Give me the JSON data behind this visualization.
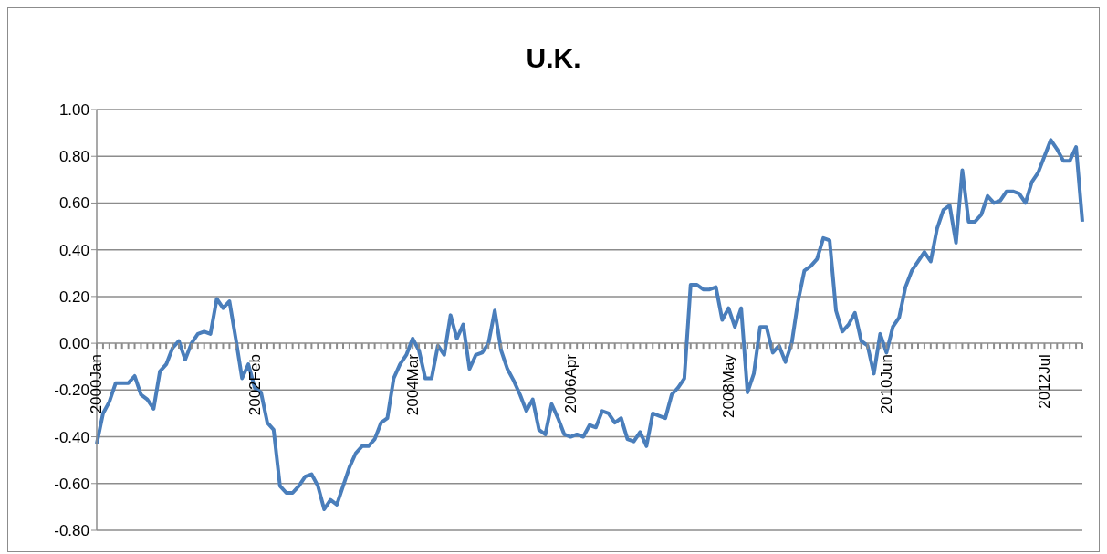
{
  "chart_data": {
    "type": "line",
    "title": "U.K.",
    "color": "#4a7ebb",
    "grid": "y",
    "ylim": [
      -0.8,
      1
    ],
    "yticks": [
      {
        "value": -0.8,
        "label": "-0.80"
      },
      {
        "value": -0.6,
        "label": "-0.60"
      },
      {
        "value": -0.4,
        "label": "-0.40"
      },
      {
        "value": -0.2,
        "label": "-0.20"
      },
      {
        "value": 0,
        "label": "0.00"
      },
      {
        "value": 0.2,
        "label": "0.20"
      },
      {
        "value": 0.4,
        "label": "0.40"
      },
      {
        "value": 0.6,
        "label": "0.60"
      },
      {
        "value": 0.8,
        "label": "0.80"
      },
      {
        "value": 1,
        "label": "1.00"
      }
    ],
    "categories": [
      "2000Jan",
      null,
      null,
      null,
      null,
      null,
      null,
      null,
      null,
      null,
      null,
      null,
      null,
      null,
      null,
      null,
      null,
      null,
      null,
      null,
      null,
      null,
      null,
      null,
      null,
      "2002Feb",
      null,
      null,
      null,
      null,
      null,
      null,
      null,
      null,
      null,
      null,
      null,
      null,
      null,
      null,
      null,
      null,
      null,
      null,
      null,
      null,
      null,
      null,
      null,
      null,
      "2004Mar",
      null,
      null,
      null,
      null,
      null,
      null,
      null,
      null,
      null,
      null,
      null,
      null,
      null,
      null,
      null,
      null,
      null,
      null,
      null,
      null,
      null,
      null,
      null,
      null,
      "2006Apr",
      null,
      null,
      null,
      null,
      null,
      null,
      null,
      null,
      null,
      null,
      null,
      null,
      null,
      null,
      null,
      null,
      null,
      null,
      null,
      null,
      null,
      null,
      null,
      null,
      "2008May",
      null,
      null,
      null,
      null,
      null,
      null,
      null,
      null,
      null,
      null,
      null,
      null,
      null,
      null,
      null,
      null,
      null,
      null,
      null,
      null,
      null,
      null,
      null,
      null,
      "2010Jun",
      null,
      null,
      null,
      null,
      null,
      null,
      null,
      null,
      null,
      null,
      null,
      null,
      null,
      null,
      null,
      null,
      null,
      null,
      null,
      null,
      null,
      null,
      null,
      null,
      "2012Jul",
      null,
      null,
      null,
      null,
      null,
      null
    ],
    "values": [
      -0.43,
      -0.3,
      -0.25,
      -0.17,
      -0.17,
      -0.17,
      -0.14,
      -0.22,
      -0.24,
      -0.28,
      -0.12,
      -0.09,
      -0.02,
      0.01,
      -0.07,
      0,
      0.04,
      0.05,
      0.04,
      0.19,
      0.15,
      0.18,
      0.02,
      -0.15,
      -0.09,
      -0.19,
      -0.21,
      -0.34,
      -0.37,
      -0.61,
      -0.64,
      -0.64,
      -0.61,
      -0.57,
      -0.56,
      -0.61,
      -0.71,
      -0.67,
      -0.69,
      -0.61,
      -0.53,
      -0.47,
      -0.44,
      -0.44,
      -0.41,
      -0.34,
      -0.32,
      -0.15,
      -0.09,
      -0.05,
      0.02,
      -0.03,
      -0.15,
      -0.15,
      -0.01,
      -0.05,
      0.12,
      0.02,
      0.08,
      -0.11,
      -0.05,
      -0.04,
      0,
      0.14,
      -0.03,
      -0.11,
      -0.16,
      -0.22,
      -0.29,
      -0.24,
      -0.37,
      -0.39,
      -0.26,
      -0.32,
      -0.39,
      -0.4,
      -0.39,
      -0.4,
      -0.35,
      -0.36,
      -0.29,
      -0.3,
      -0.34,
      -0.32,
      -0.41,
      -0.42,
      -0.38,
      -0.44,
      -0.3,
      -0.31,
      -0.32,
      -0.22,
      -0.19,
      -0.15,
      0.25,
      0.25,
      0.23,
      0.23,
      0.24,
      0.1,
      0.15,
      0.07,
      0.15,
      -0.21,
      -0.13,
      0.07,
      0.07,
      -0.04,
      -0.01,
      -0.08,
      0,
      0.18,
      0.31,
      0.33,
      0.36,
      0.45,
      0.44,
      0.14,
      0.05,
      0.08,
      0.13,
      0.01,
      -0.01,
      -0.13,
      0.04,
      -0.04,
      0.07,
      0.11,
      0.24,
      0.31,
      0.35,
      0.39,
      0.35,
      0.49,
      0.57,
      0.59,
      0.43,
      0.74,
      0.52,
      0.52,
      0.55,
      0.63,
      0.6,
      0.61,
      0.65,
      0.65,
      0.64,
      0.6,
      0.69,
      0.73,
      0.8,
      0.87,
      0.83,
      0.78,
      0.78,
      0.84,
      0.52
    ]
  }
}
